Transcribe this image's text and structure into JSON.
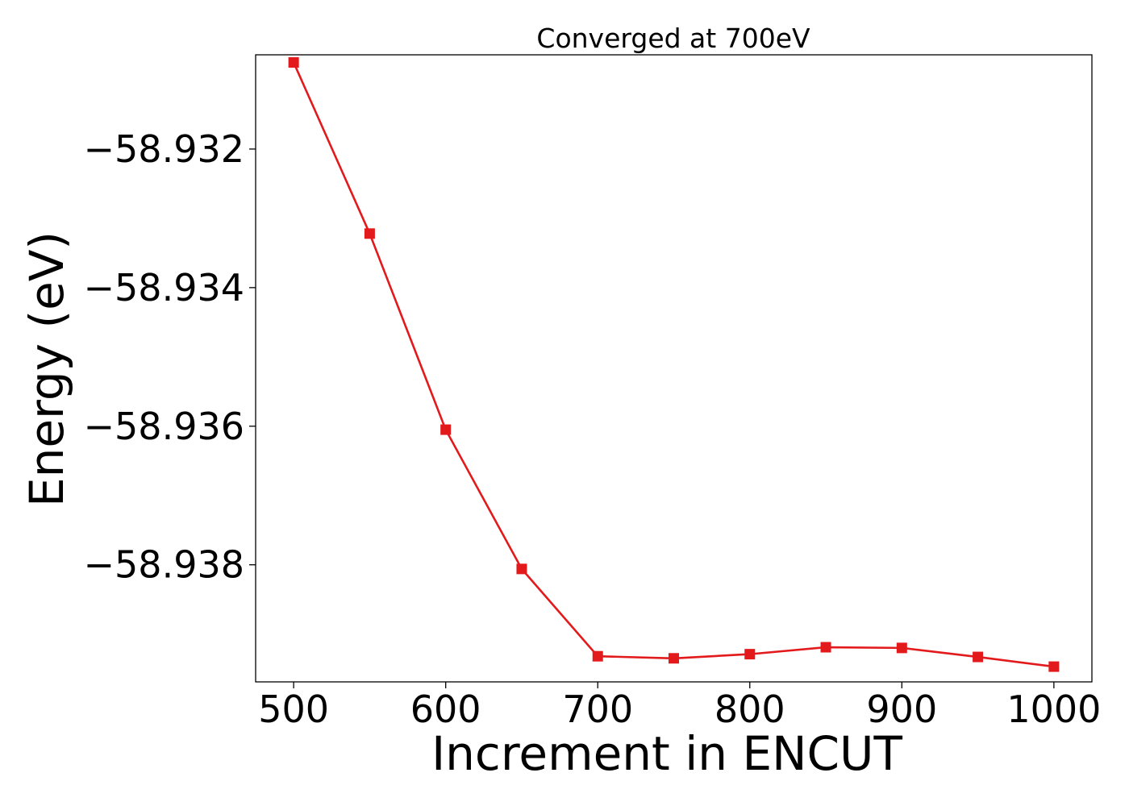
{
  "chart_data": {
    "type": "line",
    "title": "Converged at 700eV",
    "xlabel": "Increment in ENCUT",
    "ylabel": "Energy (eV)",
    "x": [
      500,
      550,
      600,
      650,
      700,
      750,
      800,
      850,
      900,
      950,
      1000
    ],
    "series": [
      {
        "values": [
          -58.93075,
          -58.93322,
          -58.93605,
          -58.93806,
          -58.93932,
          -58.93935,
          -58.93929,
          -58.93919,
          -58.9392,
          -58.93933,
          -58.93947
        ],
        "color": "#e31a1c",
        "marker": "square"
      }
    ],
    "xlim": [
      475,
      1025
    ],
    "ylim": [
      -58.93969,
      -58.93064
    ],
    "xticks": [
      500,
      600,
      700,
      800,
      900,
      1000
    ],
    "xtick_labels": [
      "500",
      "600",
      "700",
      "800",
      "900",
      "1000"
    ],
    "yticks": [
      -58.932,
      -58.934,
      -58.936,
      -58.938
    ],
    "ytick_labels": [
      "−58.932",
      "−58.934",
      "−58.936",
      "−58.938"
    ],
    "grid": false,
    "legend": "none"
  }
}
